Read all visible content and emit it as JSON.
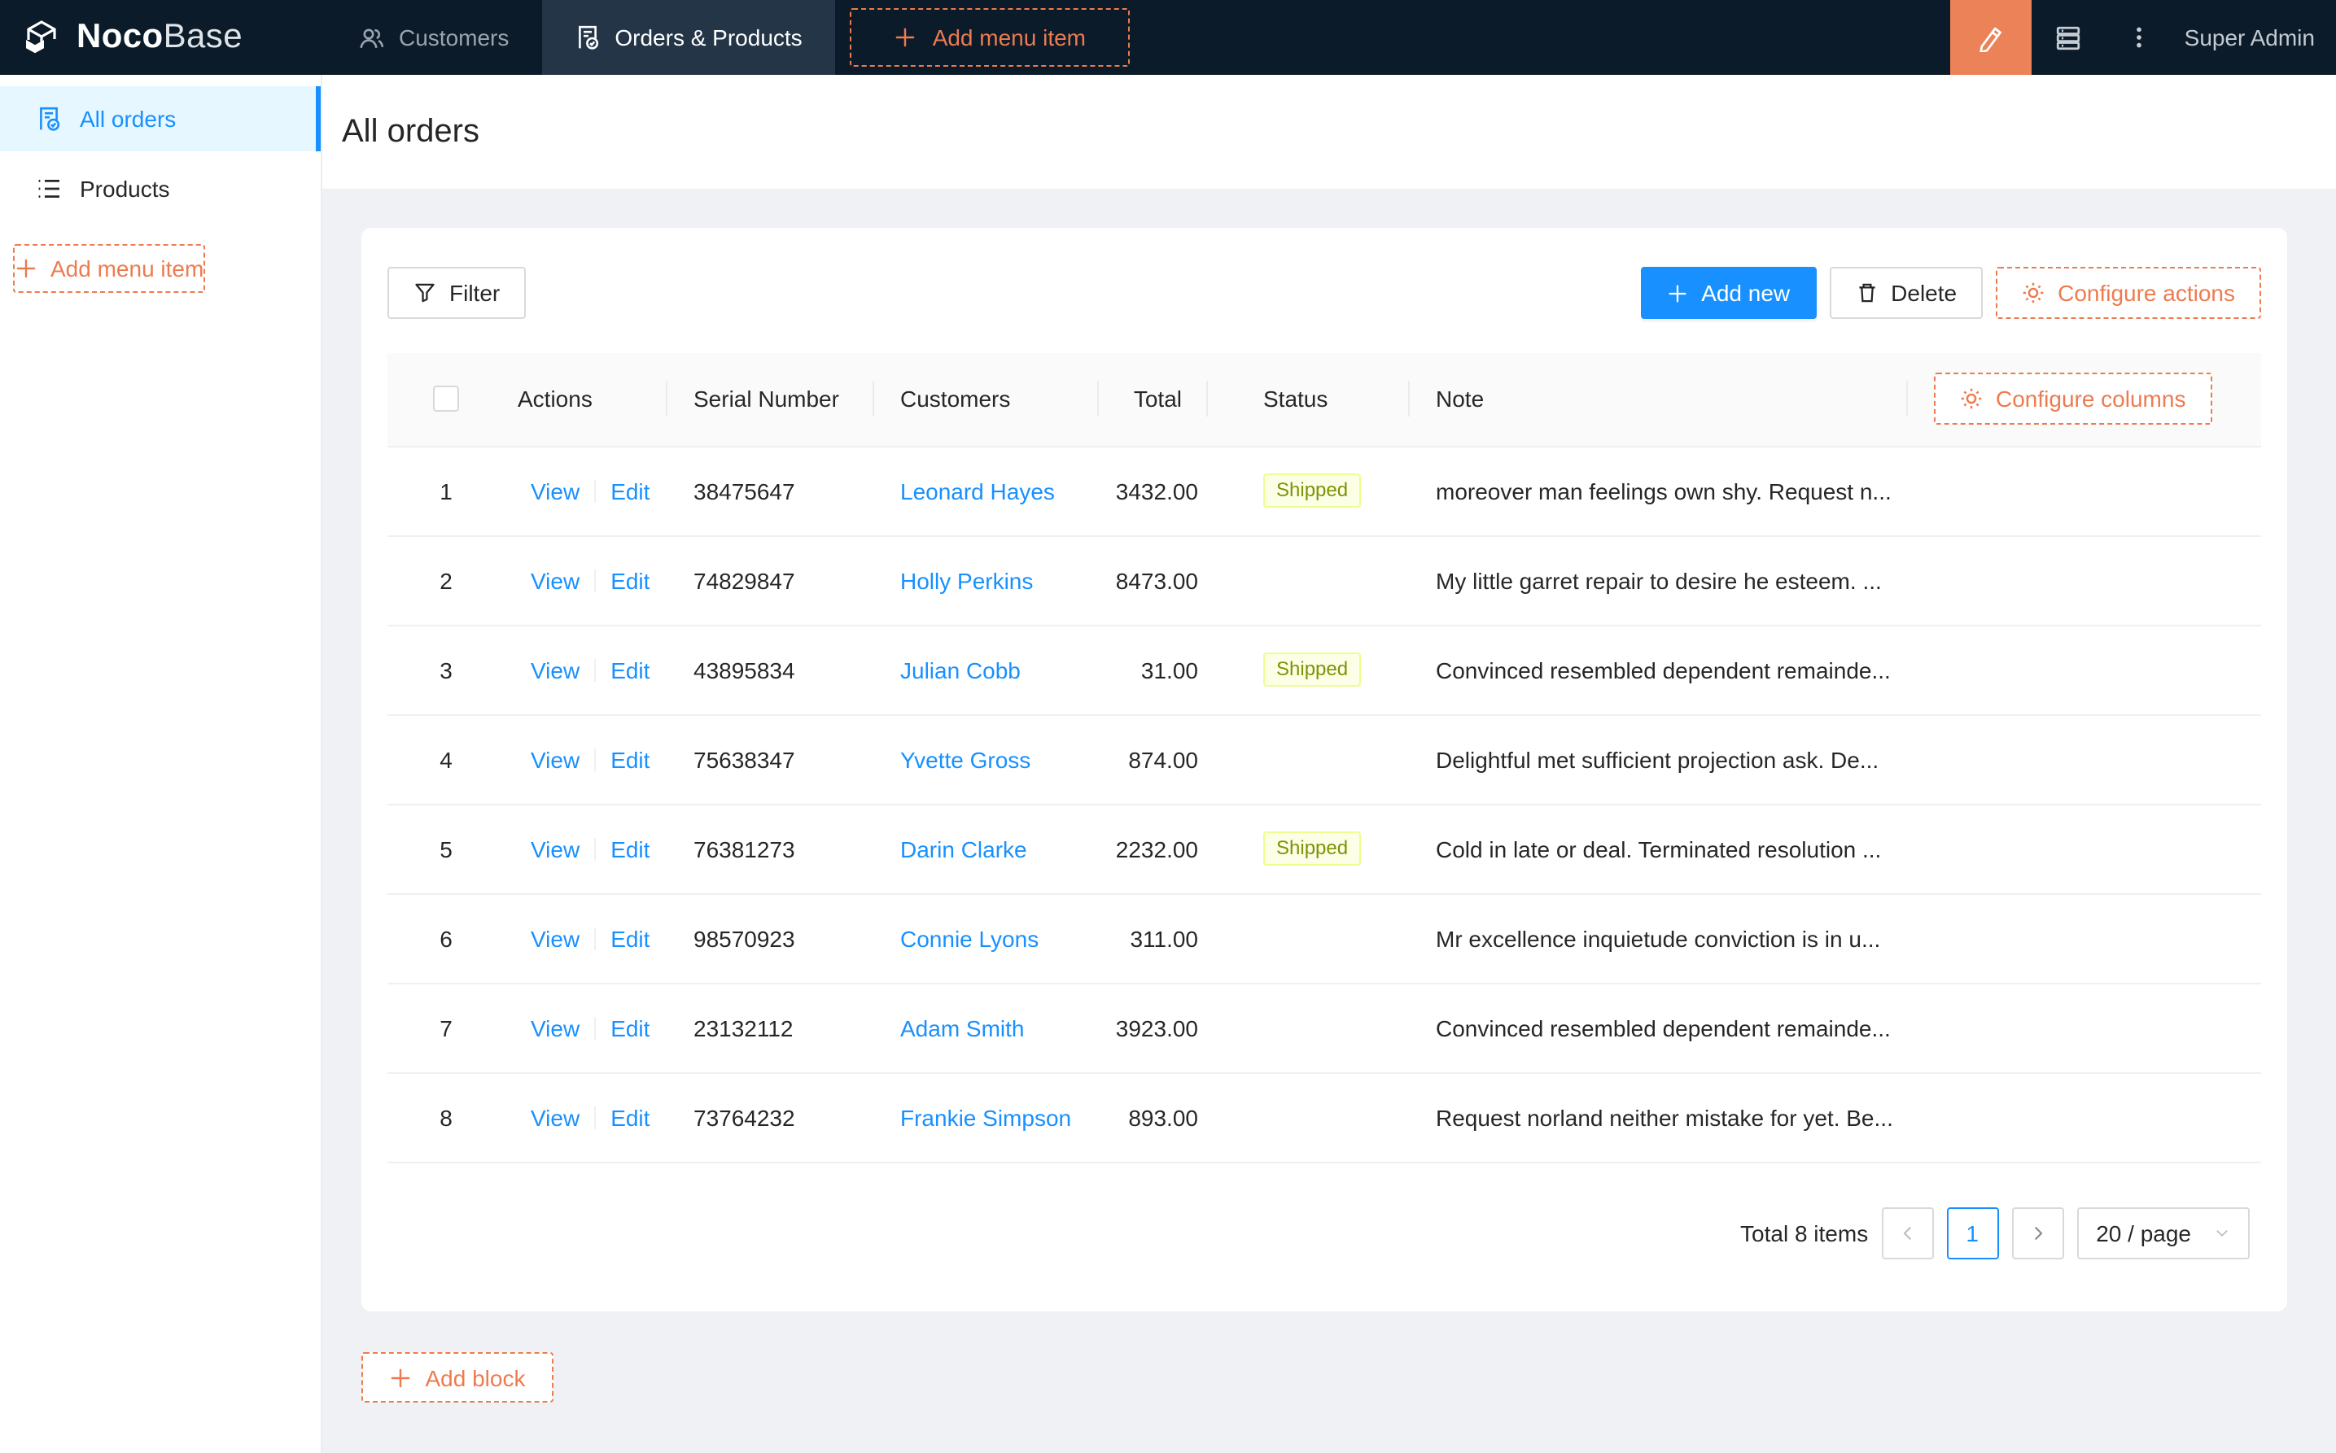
{
  "navbar": {
    "brand_bold": "Noco",
    "brand_light": "Base",
    "tabs": [
      {
        "label": "Customers",
        "icon": "people-icon",
        "active": false
      },
      {
        "label": "Orders & Products",
        "icon": "document-check-icon",
        "active": true
      }
    ],
    "add_menu_item_label": "Add menu item",
    "user_name": "Super Admin"
  },
  "sidebar": {
    "items": [
      {
        "label": "All orders",
        "icon": "document-check-icon",
        "active": true
      },
      {
        "label": "Products",
        "icon": "list-icon",
        "active": false
      }
    ],
    "add_menu_item_label": "Add menu item"
  },
  "page": {
    "title": "All orders"
  },
  "toolbar": {
    "filter_label": "Filter",
    "add_new_label": "Add new",
    "delete_label": "Delete",
    "configure_actions_label": "Configure actions"
  },
  "table": {
    "columns": {
      "actions": "Actions",
      "serial": "Serial Number",
      "customers": "Customers",
      "total": "Total",
      "status": "Status",
      "note": "Note"
    },
    "configure_columns_label": "Configure columns",
    "action_labels": {
      "view": "View",
      "edit": "Edit"
    },
    "rows": [
      {
        "index": "1",
        "serial": "38475647",
        "customer": "Leonard Hayes",
        "total": "3432.00",
        "status": "Shipped",
        "note": "moreover man feelings own shy. Request n..."
      },
      {
        "index": "2",
        "serial": "74829847",
        "customer": "Holly Perkins",
        "total": "8473.00",
        "status": "",
        "note": "My little garret repair to desire he esteem. ..."
      },
      {
        "index": "3",
        "serial": "43895834",
        "customer": "Julian Cobb",
        "total": "31.00",
        "status": "Shipped",
        "note": "Convinced resembled dependent remainde..."
      },
      {
        "index": "4",
        "serial": "75638347",
        "customer": "Yvette Gross",
        "total": "874.00",
        "status": "",
        "note": "Delightful met sufficient projection ask. De..."
      },
      {
        "index": "5",
        "serial": "76381273",
        "customer": "Darin Clarke",
        "total": "2232.00",
        "status": "Shipped",
        "note": "Cold in late or deal. Terminated resolution ..."
      },
      {
        "index": "6",
        "serial": "98570923",
        "customer": "Connie Lyons",
        "total": "311.00",
        "status": "",
        "note": "Mr excellence inquietude conviction is in u..."
      },
      {
        "index": "7",
        "serial": "23132112",
        "customer": "Adam Smith",
        "total": "3923.00",
        "status": "",
        "note": "Convinced resembled dependent remainde..."
      },
      {
        "index": "8",
        "serial": "73764232",
        "customer": "Frankie Simpson",
        "total": "893.00",
        "status": "",
        "note": "Request norland neither mistake for yet. Be..."
      }
    ],
    "pagination": {
      "total_text": "Total 8 items",
      "current_page": "1",
      "page_size_label": "20 / page"
    }
  },
  "add_block_label": "Add block",
  "colors": {
    "navbar_bg": "#0c1b2a",
    "navbar_tab_active": "#243548",
    "accent_orange": "#ed7b4f",
    "design_btn_bg": "#ec8257",
    "primary_blue": "#1890ff",
    "menu_active_bg": "#e6f7ff",
    "content_bg": "#eff1f5",
    "tag_lime_bg": "#fcffe6",
    "tag_lime_border": "#eaff8f",
    "tag_lime_text": "#7c9305"
  }
}
